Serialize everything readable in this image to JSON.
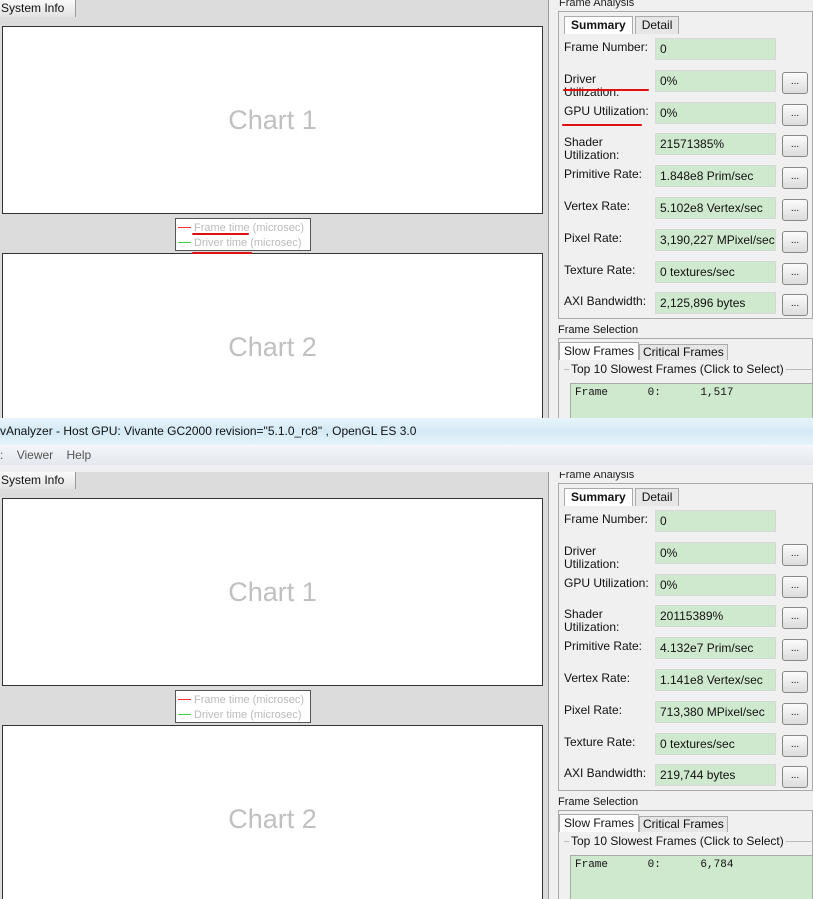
{
  "window": {
    "title": "vAnalyzer - Host GPU: Vivante GC2000 revision=\"5.1.0_rc8\" , OpenGL ES 3.0",
    "menu": [
      ":",
      "Viewer",
      "Help"
    ]
  },
  "colors": {
    "field_bg": "#cfe9cf",
    "annotation": "#e01010",
    "frame_time_line": "#ff3030",
    "driver_time_line": "#40d040"
  },
  "panes": [
    {
      "left_tab": "System Info",
      "chart1": "Chart 1",
      "chart2": "Chart 2",
      "legend": [
        "Frame time (microsec)",
        "Driver time (microsec)"
      ],
      "frame_analysis": "Frame Analysis",
      "tabs": [
        "Summary",
        "Detail"
      ],
      "rows": [
        {
          "label": "Frame Number:",
          "value": "0",
          "button": ""
        },
        {
          "label": "Driver Utilization:",
          "value": "0%",
          "button": "..."
        },
        {
          "label": "GPU Utilization:",
          "value": "0%",
          "button": "..."
        },
        {
          "label": "Shader Utilization:",
          "value": "21571385%",
          "button": "..."
        },
        {
          "label": "Primitive Rate:",
          "value": "1.848e8 Prim/sec",
          "button": "..."
        },
        {
          "label": "Vertex Rate:",
          "value": "5.102e8 Vertex/sec",
          "button": "..."
        },
        {
          "label": "Pixel Rate:",
          "value": "3,190,227 MPixel/sec",
          "button": "..."
        },
        {
          "label": "Texture Rate:",
          "value": "0 textures/sec",
          "button": "..."
        },
        {
          "label": "AXI Bandwidth:",
          "value": "2,125,896 bytes",
          "button": "..."
        }
      ],
      "frame_selection": "Frame Selection",
      "sel_tabs": [
        "Slow Frames",
        "Critical Frames"
      ],
      "group_title": "Top 10 Slowest Frames (Click to Select)",
      "list": [
        "Frame      0:      1,517"
      ]
    },
    {
      "left_tab": "System Info",
      "chart1": "Chart 1",
      "chart2": "Chart 2",
      "legend": [
        "Frame time (microsec)",
        "Driver time (microsec)"
      ],
      "frame_analysis": "Frame Analysis",
      "tabs": [
        "Summary",
        "Detail"
      ],
      "rows": [
        {
          "label": "Frame Number:",
          "value": "0",
          "button": ""
        },
        {
          "label": "Driver Utilization:",
          "value": "0%",
          "button": "..."
        },
        {
          "label": "GPU Utilization:",
          "value": "0%",
          "button": "..."
        },
        {
          "label": "Shader Utilization:",
          "value": "20115389%",
          "button": "..."
        },
        {
          "label": "Primitive Rate:",
          "value": "4.132e7 Prim/sec",
          "button": "..."
        },
        {
          "label": "Vertex Rate:",
          "value": "1.141e8 Vertex/sec",
          "button": "..."
        },
        {
          "label": "Pixel Rate:",
          "value": "713,380 MPixel/sec",
          "button": "..."
        },
        {
          "label": "Texture Rate:",
          "value": "0 textures/sec",
          "button": "..."
        },
        {
          "label": "AXI Bandwidth:",
          "value": "219,744 bytes",
          "button": "..."
        }
      ],
      "frame_selection": "Frame Selection",
      "sel_tabs": [
        "Slow Frames",
        "Critical Frames"
      ],
      "group_title": "Top 10 Slowest Frames (Click to Select)",
      "list": [
        "Frame      0:      6,784"
      ]
    }
  ]
}
